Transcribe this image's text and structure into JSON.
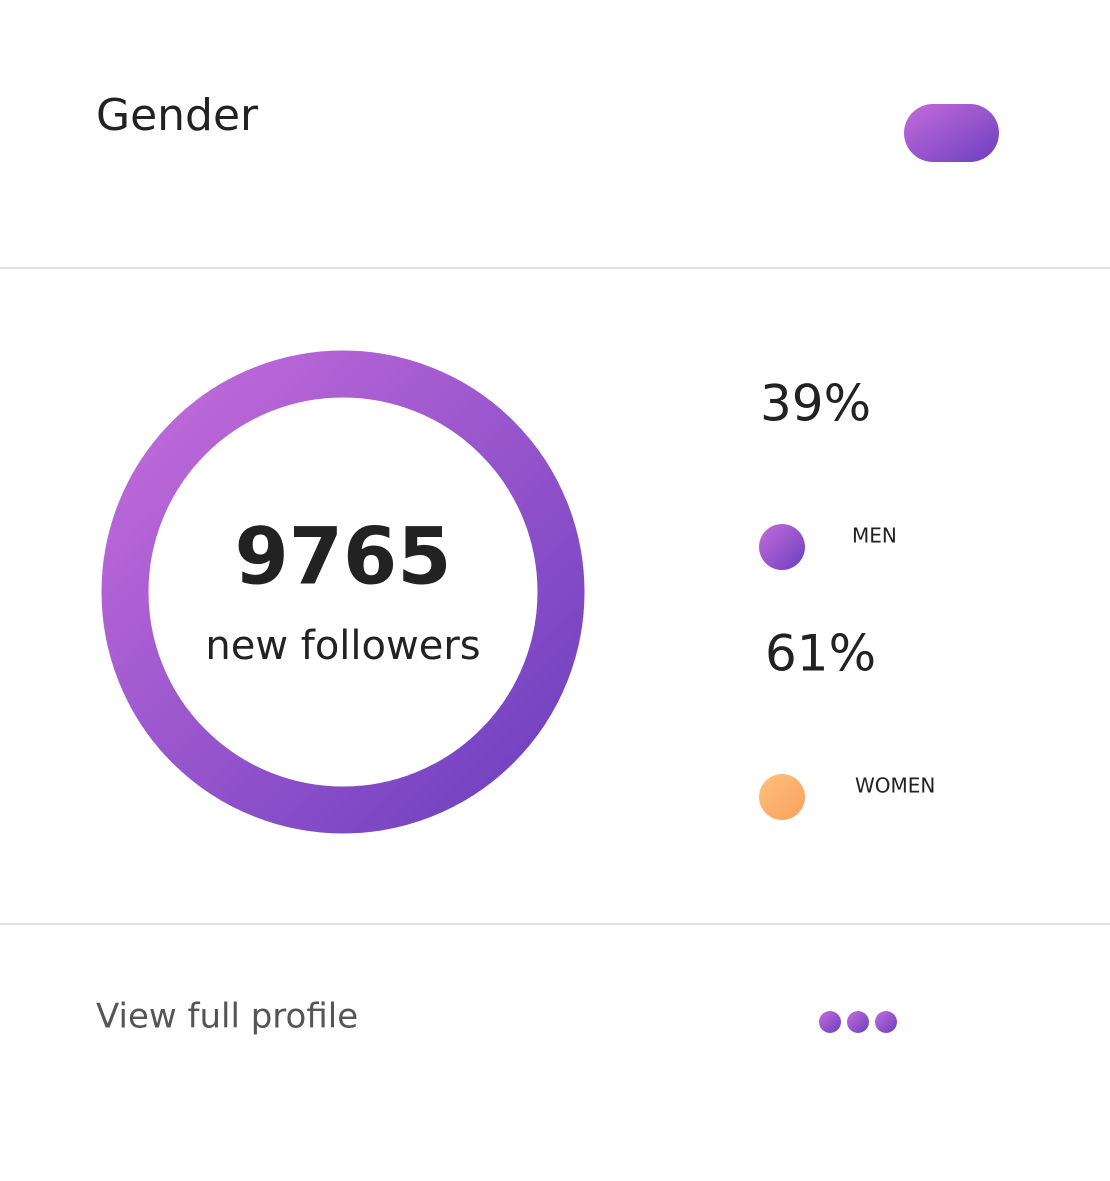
{
  "header": {
    "title": "Gender"
  },
  "summary": {
    "value": "9765",
    "label": "new followers"
  },
  "legend": [
    {
      "percent": "39%",
      "label": "MEN"
    },
    {
      "percent": "61%",
      "label": "WOMEN"
    }
  ],
  "footer": {
    "link": "View full profile"
  }
}
